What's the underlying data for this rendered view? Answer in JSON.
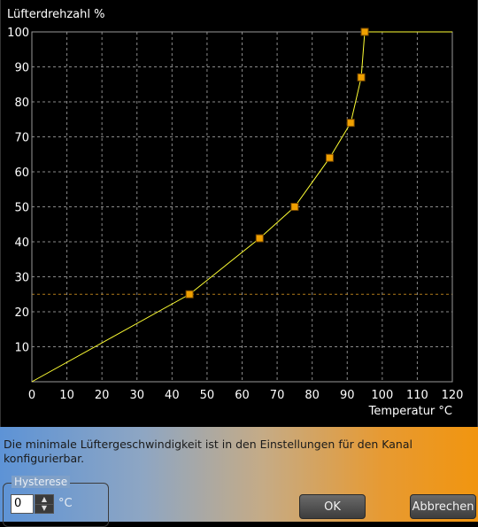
{
  "chart_data": {
    "type": "line",
    "ylabel": "Lüfterdrehzahl %",
    "xlabel": "Temperatur °C",
    "xlim": [
      0,
      120
    ],
    "ylim": [
      0,
      100
    ],
    "x_ticks": [
      0,
      10,
      20,
      30,
      40,
      50,
      60,
      70,
      80,
      90,
      100,
      110,
      120
    ],
    "y_ticks": [
      10,
      20,
      30,
      40,
      50,
      60,
      70,
      80,
      90,
      100
    ],
    "grid": true,
    "series": [
      {
        "curve_points": [
          {
            "x": 0,
            "y": 0
          },
          {
            "x": 45,
            "y": 25
          },
          {
            "x": 65,
            "y": 41
          },
          {
            "x": 75,
            "y": 50
          },
          {
            "x": 85,
            "y": 64
          },
          {
            "x": 91,
            "y": 74
          },
          {
            "x": 94,
            "y": 87
          },
          {
            "x": 95,
            "y": 100
          },
          {
            "x": 120,
            "y": 100
          }
        ],
        "control_points": [
          {
            "x": 45,
            "y": 25
          },
          {
            "x": 65,
            "y": 41
          },
          {
            "x": 75,
            "y": 50
          },
          {
            "x": 85,
            "y": 64
          },
          {
            "x": 91,
            "y": 74
          },
          {
            "x": 94,
            "y": 87
          },
          {
            "x": 95,
            "y": 100
          }
        ]
      }
    ],
    "reference_line_y": 25,
    "colors": {
      "curve": "#ffff33",
      "point_fill": "#f0a000",
      "point_stroke": "#7a4a00",
      "grid": "#8a8a8a",
      "reference_line": "#b07a1a",
      "plot_border": "#9a9a9a"
    }
  },
  "info": {
    "text": "Die minimale Lüftergeschwindigkeit ist in den Einstellungen für den Kanal konfigurierbar."
  },
  "hysteresis": {
    "label": "Hysterese",
    "value": "0",
    "unit": "°C"
  },
  "buttons": {
    "ok": "OK",
    "cancel": "Abbrechen"
  }
}
